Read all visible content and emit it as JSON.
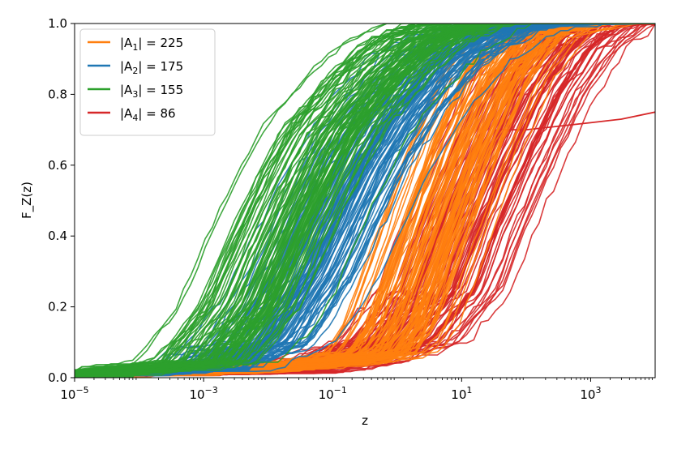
{
  "chart_data": {
    "type": "line",
    "title": "",
    "xlabel": "z",
    "ylabel": "F_Z(z)",
    "xscale": "log",
    "xlim": [
      1e-05,
      10000
    ],
    "ylim": [
      0.0,
      1.0
    ],
    "x_ticks": [
      {
        "value": 1e-05,
        "base": "10",
        "exp": "−5"
      },
      {
        "value": 0.001,
        "base": "10",
        "exp": "−3"
      },
      {
        "value": 0.1,
        "base": "10",
        "exp": "−1"
      },
      {
        "value": 10,
        "base": "10",
        "exp": "1"
      },
      {
        "value": 1000,
        "base": "10",
        "exp": "3"
      }
    ],
    "y_ticks": [
      "0.0",
      "0.2",
      "0.4",
      "0.6",
      "0.8",
      "1.0"
    ],
    "grid": false,
    "legend_position": "upper-left",
    "series": [
      {
        "name_prefix": "|A",
        "name_sub": "1",
        "name_suffix": "| = 225",
        "color": "#ff7f0e",
        "curve_count": 225,
        "median_curve": {
          "x": [
            1e-05,
            0.001,
            0.1,
            0.5,
            1,
            2,
            5,
            10,
            30,
            100,
            500
          ],
          "y": [
            0.0,
            0.01,
            0.04,
            0.07,
            0.15,
            0.3,
            0.5,
            0.65,
            0.85,
            0.97,
            1.0
          ]
        }
      },
      {
        "name_prefix": "|A",
        "name_sub": "2",
        "name_suffix": "| = 175",
        "color": "#1f77b4",
        "curve_count": 175,
        "median_curve": {
          "x": [
            1e-05,
            0.001,
            0.01,
            0.05,
            0.1,
            0.3,
            1,
            5,
            30,
            200
          ],
          "y": [
            0.0,
            0.02,
            0.1,
            0.3,
            0.42,
            0.6,
            0.75,
            0.9,
            0.98,
            1.0
          ]
        }
      },
      {
        "name_prefix": "|A",
        "name_sub": "3",
        "name_suffix": "| = 155",
        "color": "#2ca02c",
        "curve_count": 155,
        "median_curve": {
          "x": [
            1e-05,
            0.001,
            0.005,
            0.02,
            0.05,
            0.1,
            0.5,
            2,
            10
          ],
          "y": [
            0.0,
            0.04,
            0.2,
            0.45,
            0.6,
            0.7,
            0.85,
            0.95,
            1.0
          ]
        }
      },
      {
        "name_prefix": "|A",
        "name_sub": "4",
        "name_suffix": "| = 86",
        "color": "#d62728",
        "curve_count": 86,
        "median_curve": {
          "x": [
            1e-05,
            0.01,
            0.1,
            1,
            5,
            10,
            30,
            100,
            300,
            1000
          ],
          "y": [
            0.0,
            0.01,
            0.04,
            0.1,
            0.25,
            0.4,
            0.6,
            0.8,
            0.93,
            1.0
          ]
        },
        "outlier_curve": {
          "x": [
            40,
            100,
            1000,
            3000,
            10000
          ],
          "y": [
            0.7,
            0.7,
            0.72,
            0.73,
            0.75
          ]
        }
      }
    ]
  }
}
